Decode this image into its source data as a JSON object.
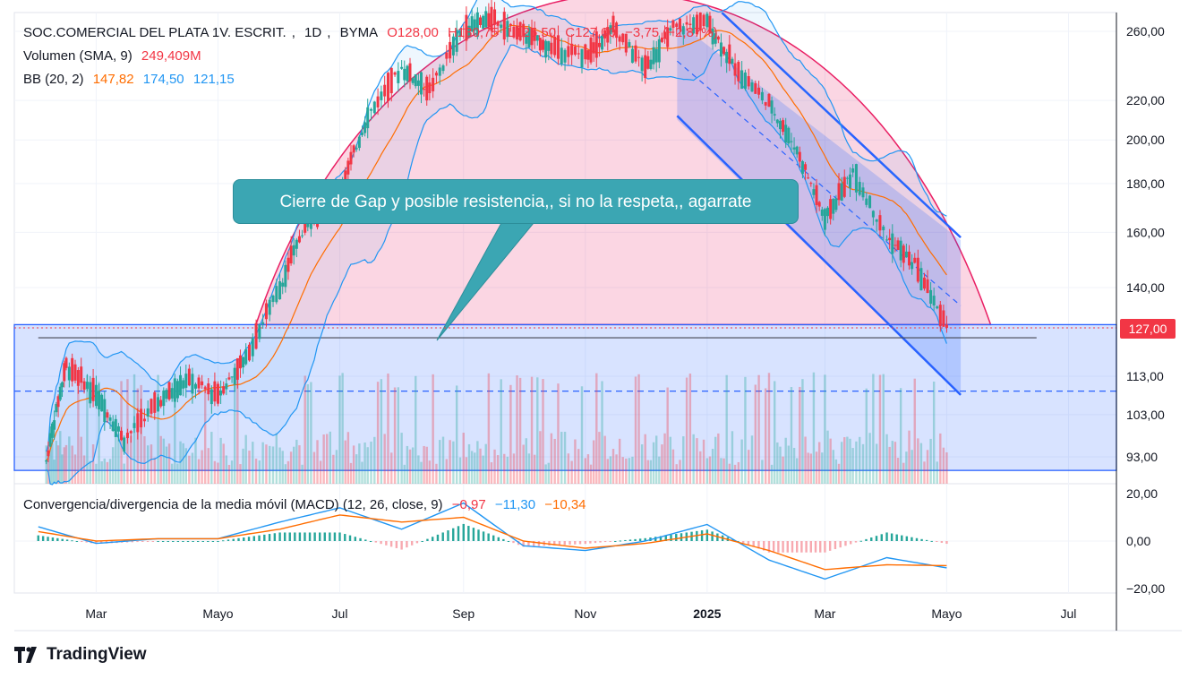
{
  "header": {
    "symbol": "SOC.COMERCIAL DEL PLATA 1V. ESCRIT.",
    "interval": "1D",
    "exchange": "BYMA",
    "open": "O128,00",
    "high": "H130,75",
    "low": "L125,50",
    "close": "C127,00",
    "change": "−3,75 (−2,87%)"
  },
  "volume_legend": {
    "label": "Volumen (SMA, 9)",
    "value": "249,409M"
  },
  "bb_legend": {
    "label": "BB (20, 2)",
    "basis": "147,82",
    "upper": "174,50",
    "lower": "121,15"
  },
  "macd_legend": {
    "label": "Convergencia/divergencia de la media móvil (MACD) (12, 26, close, 9)",
    "hist": "−0,97",
    "macd": "−11,30",
    "signal": "−10,34"
  },
  "annotation": "Cierre de Gap y posible resistencia,, si no la respeta,, agarrate",
  "last_price": "127,00",
  "brand": "TradingView",
  "colors": {
    "up": "#26a69a",
    "down": "#f23645",
    "basis": "#ff6d00",
    "bands": "#2196f3",
    "channel": "#2962ff",
    "arc": "#e91e63"
  },
  "chart_data": {
    "type": "candlestick",
    "price_axis": {
      "scale": "log",
      "ticks": [
        "260,00",
        "220,00",
        "200,00",
        "180,00",
        "160,00",
        "140,00",
        "127,00",
        "113,00",
        "103,00",
        "93,00"
      ],
      "tick_values": [
        260,
        220,
        200,
        180,
        160,
        140,
        127,
        113,
        103,
        93
      ]
    },
    "macd_axis": {
      "ticks": [
        "20,00",
        "0,00",
        "−20,00"
      ],
      "tick_values": [
        20,
        0,
        -20
      ]
    },
    "x_ticks": [
      "Mar",
      "Mayo",
      "Jul",
      "Sep",
      "Nov",
      "2025",
      "Mar",
      "Mayo",
      "Jul"
    ],
    "series_close": [
      {
        "date": "2024-02-05",
        "close": 92
      },
      {
        "date": "2024-02-15",
        "close": 116
      },
      {
        "date": "2024-03-01",
        "close": 108
      },
      {
        "date": "2024-03-15",
        "close": 97
      },
      {
        "date": "2024-04-01",
        "close": 106
      },
      {
        "date": "2024-04-15",
        "close": 112
      },
      {
        "date": "2024-05-01",
        "close": 108
      },
      {
        "date": "2024-05-15",
        "close": 118
      },
      {
        "date": "2024-06-01",
        "close": 140
      },
      {
        "date": "2024-06-15",
        "close": 165
      },
      {
        "date": "2024-07-01",
        "close": 175
      },
      {
        "date": "2024-07-15",
        "close": 212
      },
      {
        "date": "2024-08-01",
        "close": 238
      },
      {
        "date": "2024-08-15",
        "close": 225
      },
      {
        "date": "2024-09-01",
        "close": 262
      },
      {
        "date": "2024-09-15",
        "close": 268
      },
      {
        "date": "2024-10-01",
        "close": 258
      },
      {
        "date": "2024-10-15",
        "close": 250
      },
      {
        "date": "2024-11-01",
        "close": 245
      },
      {
        "date": "2024-11-15",
        "close": 262
      },
      {
        "date": "2024-12-01",
        "close": 238
      },
      {
        "date": "2024-12-15",
        "close": 262
      },
      {
        "date": "2025-01-01",
        "close": 266
      },
      {
        "date": "2025-01-15",
        "close": 238
      },
      {
        "date": "2025-02-01",
        "close": 218
      },
      {
        "date": "2025-02-15",
        "close": 195
      },
      {
        "date": "2025-03-01",
        "close": 165
      },
      {
        "date": "2025-03-15",
        "close": 185
      },
      {
        "date": "2025-04-01",
        "close": 158
      },
      {
        "date": "2025-04-15",
        "close": 148
      },
      {
        "date": "2025-05-01",
        "close": 127
      }
    ],
    "macd_series": [
      {
        "date": "2024-02-01",
        "macd": 6,
        "signal": 4
      },
      {
        "date": "2024-03-01",
        "macd": -1,
        "signal": 0
      },
      {
        "date": "2024-04-01",
        "macd": 1,
        "signal": 1
      },
      {
        "date": "2024-05-01",
        "macd": 1,
        "signal": 1
      },
      {
        "date": "2024-06-01",
        "macd": 8,
        "signal": 5
      },
      {
        "date": "2024-07-01",
        "macd": 14,
        "signal": 11
      },
      {
        "date": "2024-08-01",
        "macd": 5,
        "signal": 8
      },
      {
        "date": "2024-09-01",
        "macd": 16,
        "signal": 10
      },
      {
        "date": "2024-10-01",
        "macd": -2,
        "signal": 0
      },
      {
        "date": "2024-11-01",
        "macd": -4,
        "signal": -3
      },
      {
        "date": "2024-12-01",
        "macd": 0,
        "signal": -1
      },
      {
        "date": "2025-01-01",
        "macd": 7,
        "signal": 3
      },
      {
        "date": "2025-02-01",
        "macd": -8,
        "signal": -4
      },
      {
        "date": "2025-03-01",
        "macd": -16,
        "signal": -12
      },
      {
        "date": "2025-04-01",
        "macd": -7,
        "signal": -10
      },
      {
        "date": "2025-05-01",
        "macd": -11.3,
        "signal": -10.34
      }
    ]
  }
}
